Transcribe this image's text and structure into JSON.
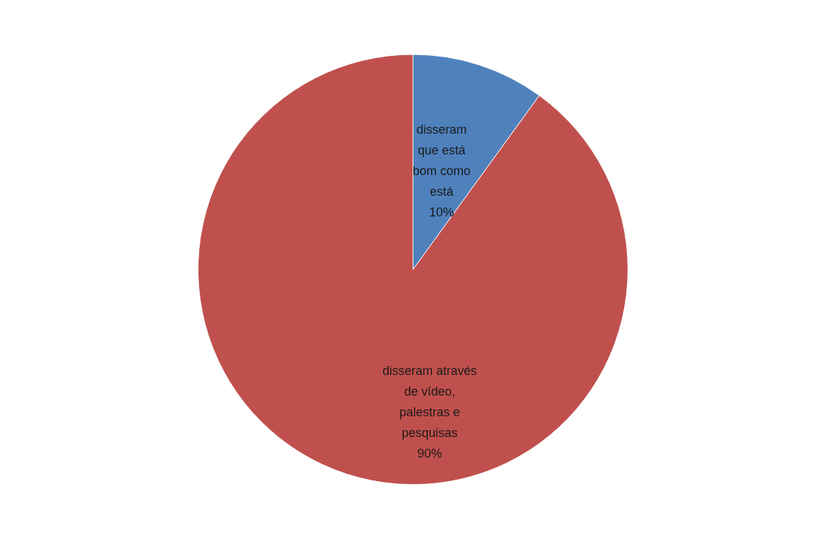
{
  "chart_data": {
    "type": "pie",
    "categories": [
      "disseram que está bom como está",
      "disseram através de vídeo, palestras e pesquisas"
    ],
    "values": [
      10,
      90
    ],
    "colors": [
      "#4f81bd",
      "#c0504d"
    ],
    "value_labels": [
      "10%",
      "90%"
    ]
  }
}
